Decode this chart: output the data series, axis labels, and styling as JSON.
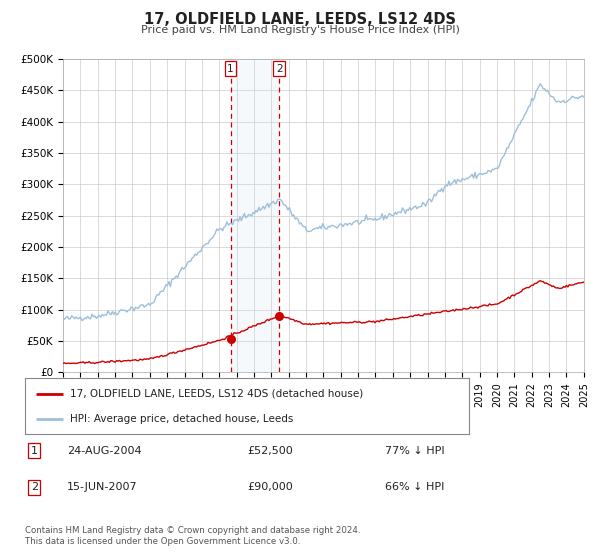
{
  "title": "17, OLDFIELD LANE, LEEDS, LS12 4DS",
  "subtitle": "Price paid vs. HM Land Registry's House Price Index (HPI)",
  "background_color": "#ffffff",
  "plot_bg_color": "#ffffff",
  "grid_color": "#cccccc",
  "hpi_color": "#9dbfdc",
  "price_color": "#cc0000",
  "legend_label_price": "17, OLDFIELD LANE, LEEDS, LS12 4DS (detached house)",
  "legend_label_hpi": "HPI: Average price, detached house, Leeds",
  "transaction1_date": "24-AUG-2004",
  "transaction1_price": "£52,500",
  "transaction1_pct": "77% ↓ HPI",
  "transaction2_date": "15-JUN-2007",
  "transaction2_price": "£90,000",
  "transaction2_pct": "66% ↓ HPI",
  "footer": "Contains HM Land Registry data © Crown copyright and database right 2024.\nThis data is licensed under the Open Government Licence v3.0.",
  "ylim": [
    0,
    500000
  ],
  "ytick_labels": [
    "£0",
    "£50K",
    "£100K",
    "£150K",
    "£200K",
    "£250K",
    "£300K",
    "£350K",
    "£400K",
    "£450K",
    "£500K"
  ],
  "ytick_values": [
    0,
    50000,
    100000,
    150000,
    200000,
    250000,
    300000,
    350000,
    400000,
    450000,
    500000
  ],
  "year_start": 1995,
  "year_end": 2025,
  "t1_year": 2004.65,
  "t2_year": 2007.46,
  "t1_price": 52500,
  "t2_price": 90000,
  "span_alpha": 0.15,
  "span_color": "#c8dcf0"
}
